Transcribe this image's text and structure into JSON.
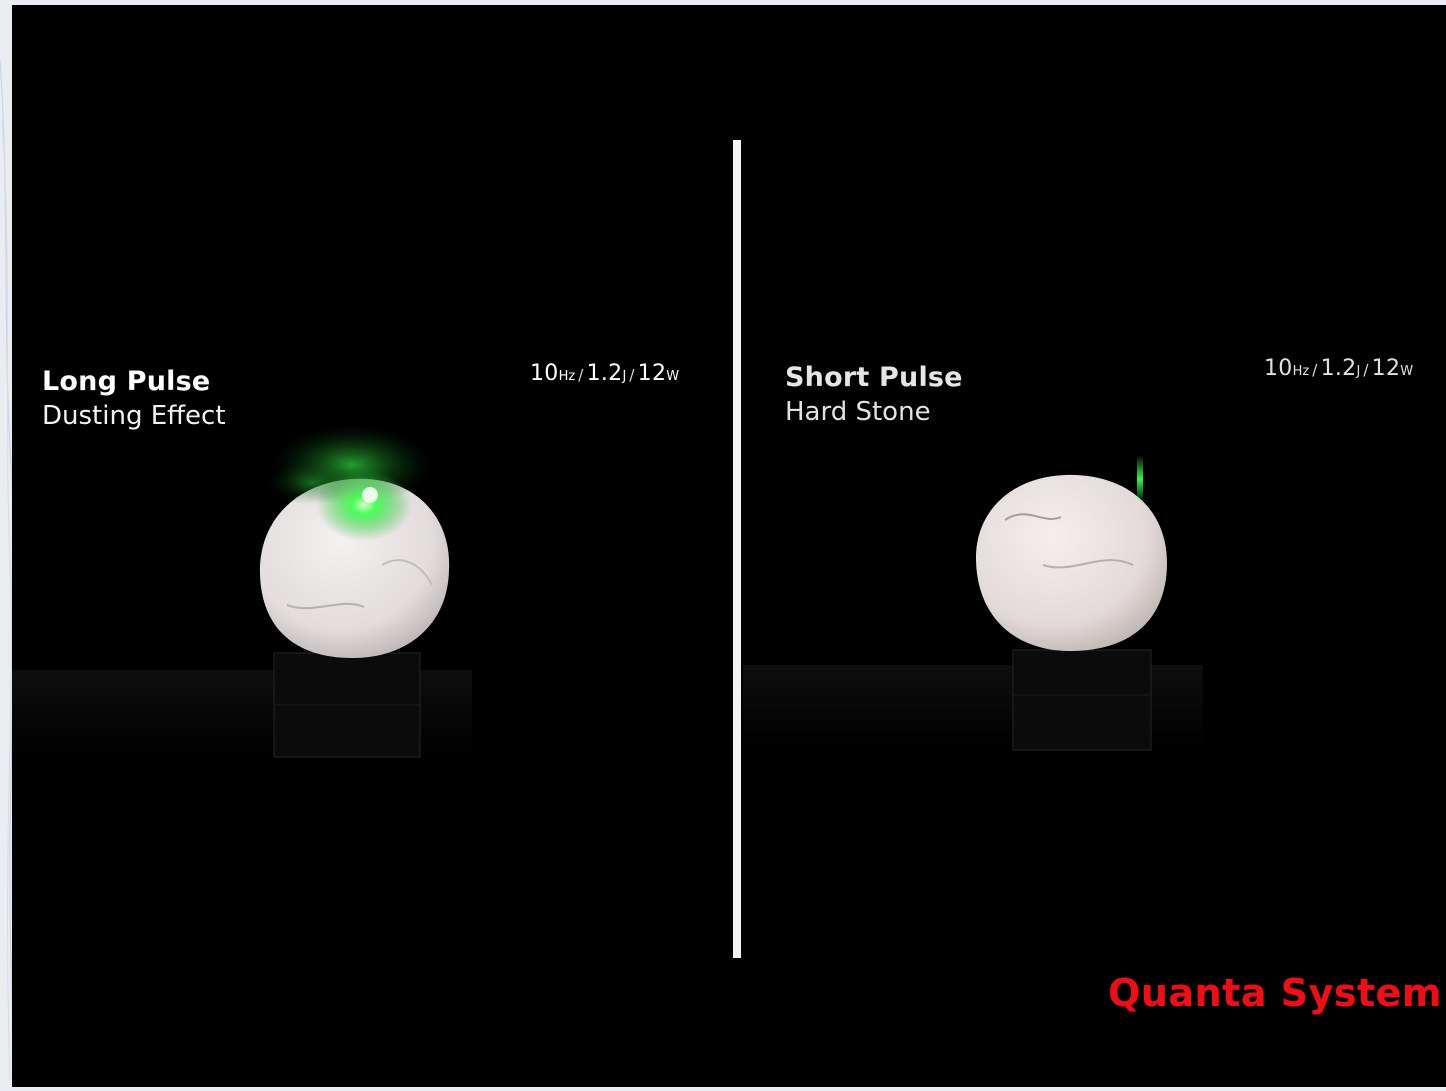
{
  "left_panel": {
    "title": "Long Pulse",
    "subtitle": "Dusting Effect",
    "params": {
      "freq_value": "10",
      "freq_unit": "Hz",
      "energy_value": "1.2",
      "energy_unit": "J",
      "power_value": "12",
      "power_unit": "W",
      "separator": "/"
    }
  },
  "right_panel": {
    "title": "Short Pulse",
    "subtitle": "Hard Stone",
    "params": {
      "freq_value": "10",
      "freq_unit": "Hz",
      "energy_value": "1.2",
      "energy_unit": "J",
      "power_value": "12",
      "power_unit": "W",
      "separator": "/"
    }
  },
  "brand": {
    "name": "Quanta System",
    "color": "#ea1018"
  },
  "colors": {
    "laser_green": "#3cff4a",
    "stone": "#ebe6e6",
    "divider": "#f3f3f3"
  }
}
